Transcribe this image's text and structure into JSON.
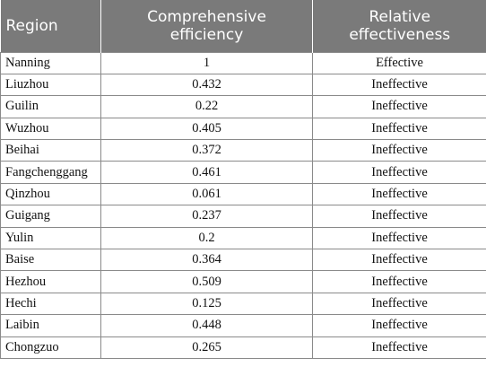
{
  "table": {
    "headers": {
      "region": "Region",
      "efficiency_line1": "Comprehensive",
      "efficiency_line2": "efficiency",
      "effectiveness_line1": "Relative",
      "effectiveness_line2": "effectiveness"
    },
    "rows": [
      {
        "region": "Nanning",
        "efficiency": "1",
        "effectiveness": "Effective"
      },
      {
        "region": "Liuzhou",
        "efficiency": "0.432",
        "effectiveness": "Ineffective"
      },
      {
        "region": "Guilin",
        "efficiency": "0.22",
        "effectiveness": "Ineffective"
      },
      {
        "region": "Wuzhou",
        "efficiency": "0.405",
        "effectiveness": "Ineffective"
      },
      {
        "region": "Beihai",
        "efficiency": "0.372",
        "effectiveness": "Ineffective"
      },
      {
        "region": "Fangchenggang",
        "efficiency": "0.461",
        "effectiveness": "Ineffective"
      },
      {
        "region": "Qinzhou",
        "efficiency": "0.061",
        "effectiveness": "Ineffective"
      },
      {
        "region": "Guigang",
        "efficiency": "0.237",
        "effectiveness": "Ineffective"
      },
      {
        "region": "Yulin",
        "efficiency": "0.2",
        "effectiveness": "Ineffective"
      },
      {
        "region": "Baise",
        "efficiency": "0.364",
        "effectiveness": "Ineffective"
      },
      {
        "region": "Hezhou",
        "efficiency": "0.509",
        "effectiveness": "Ineffective"
      },
      {
        "region": "Hechi",
        "efficiency": "0.125",
        "effectiveness": "Ineffective"
      },
      {
        "region": "Laibin",
        "efficiency": "0.448",
        "effectiveness": "Ineffective"
      },
      {
        "region": "Chongzuo",
        "efficiency": "0.265",
        "effectiveness": "Ineffective"
      }
    ]
  }
}
